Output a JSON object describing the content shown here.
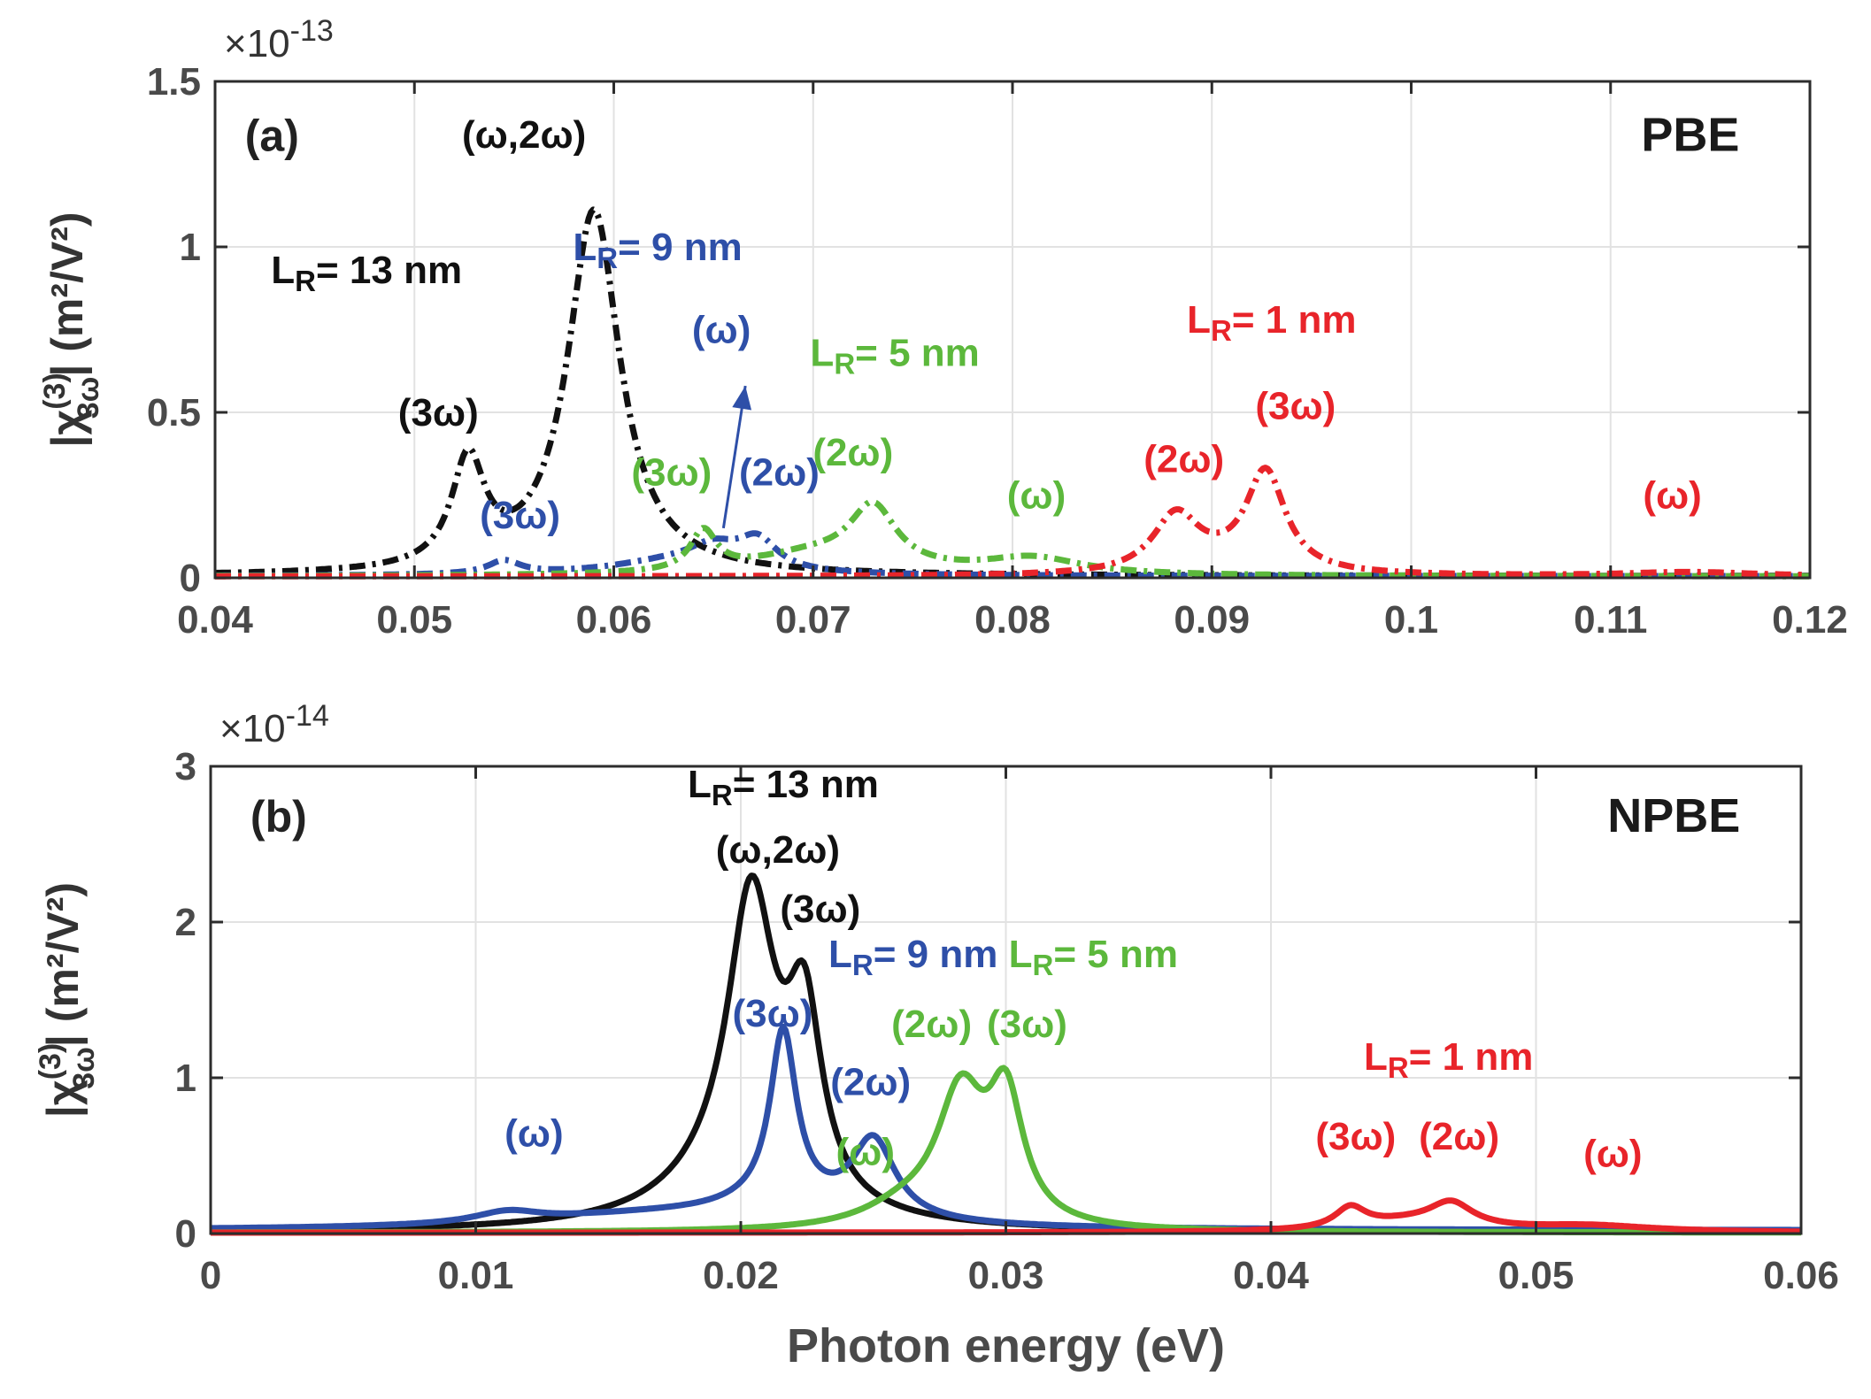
{
  "chart_data": [
    {
      "panel": "a",
      "type": "line",
      "method_label": "PBE",
      "panel_label": "(a)",
      "multiplier": "×10",
      "multiplier_exp": "-13",
      "xlabel": "",
      "ylabel_prefix": "|χ",
      "ylabel_sup": "(3)",
      "ylabel_sub": "3ω",
      "ylabel_suffix": "| (m²/V²)",
      "xlim": [
        0.04,
        0.12
      ],
      "ylim": [
        0,
        1.5
      ],
      "xticks": [
        0.04,
        0.05,
        0.06,
        0.07,
        0.08,
        0.09,
        0.1,
        0.11,
        0.12
      ],
      "xtick_labels": [
        "0.04",
        "0.05",
        "0.06",
        "0.07",
        "0.08",
        "0.09",
        "0.1",
        "0.11",
        "0.12"
      ],
      "yticks": [
        0,
        0.5,
        1,
        1.5
      ],
      "ytick_labels": [
        "0",
        "0.5",
        "1",
        "1.5"
      ],
      "line_style": "dashdot",
      "series": [
        {
          "name": "L_R = 13 nm",
          "color": "#111111",
          "baseline": 0.005,
          "peaks": [
            {
              "x": 0.0527,
              "amp": 0.32,
              "w": 0.001
            },
            {
              "x": 0.059,
              "amp": 1.1,
              "w": 0.0016
            }
          ]
        },
        {
          "name": "L_R = 9 nm",
          "color": "#2e4fa8",
          "baseline": 0.005,
          "peaks": [
            {
              "x": 0.0545,
              "amp": 0.04,
              "w": 0.001
            },
            {
              "x": 0.063,
              "amp": 0.04,
              "w": 0.004
            },
            {
              "x": 0.065,
              "amp": 0.06,
              "w": 0.0015
            },
            {
              "x": 0.0672,
              "amp": 0.09,
              "w": 0.0012
            }
          ]
        },
        {
          "name": "L_R = 5 nm",
          "color": "#5cb83c",
          "baseline": 0.004,
          "peaks": [
            {
              "x": 0.0645,
              "amp": 0.12,
              "w": 0.0008
            },
            {
              "x": 0.07,
              "amp": 0.06,
              "w": 0.004
            },
            {
              "x": 0.073,
              "amp": 0.18,
              "w": 0.0014
            },
            {
              "x": 0.081,
              "amp": 0.05,
              "w": 0.003
            }
          ]
        },
        {
          "name": "L_R = 1 nm",
          "color": "#e8242a",
          "baseline": 0.004,
          "peaks": [
            {
              "x": 0.0882,
              "amp": 0.17,
              "w": 0.0014
            },
            {
              "x": 0.0927,
              "amp": 0.3,
              "w": 0.0012
            },
            {
              "x": 0.0905,
              "amp": 0.02,
              "w": 0.003
            },
            {
              "x": 0.114,
              "amp": 0.012,
              "w": 0.004
            }
          ]
        }
      ],
      "annotations": [
        {
          "text": "(a)",
          "x": 0.0415,
          "y": 1.29,
          "color": "#222222",
          "cls": "plabel"
        },
        {
          "text": "PBE",
          "x": 0.114,
          "y": 1.29,
          "color": "#1a1a1a",
          "cls": "meth"
        },
        {
          "text": "(ω,2ω)",
          "x": 0.0555,
          "y": 1.3,
          "color": "#111111",
          "cls": "ann"
        },
        {
          "text": "L_R= 13 nm",
          "x": 0.0476,
          "y": 0.89,
          "color": "#111111",
          "cls": "ann"
        },
        {
          "text": "L_R= 9 nm",
          "x": 0.0622,
          "y": 0.96,
          "color": "#2e4fa8",
          "cls": "ann"
        },
        {
          "text": "(ω)",
          "x": 0.0654,
          "y": 0.71,
          "color": "#2e4fa8",
          "cls": "ann"
        },
        {
          "text": "L_R= 5 nm",
          "x": 0.0741,
          "y": 0.64,
          "color": "#5cb83c",
          "cls": "ann"
        },
        {
          "text": "L_R= 1 nm",
          "x": 0.093,
          "y": 0.74,
          "color": "#e8242a",
          "cls": "ann"
        },
        {
          "text": "(3ω)",
          "x": 0.0512,
          "y": 0.46,
          "color": "#111111",
          "cls": "ann"
        },
        {
          "text": "(3ω)",
          "x": 0.0942,
          "y": 0.48,
          "color": "#e8242a",
          "cls": "ann"
        },
        {
          "text": "(2ω)",
          "x": 0.072,
          "y": 0.34,
          "color": "#5cb83c",
          "cls": "ann"
        },
        {
          "text": "(2ω)",
          "x": 0.0886,
          "y": 0.32,
          "color": "#e8242a",
          "cls": "ann"
        },
        {
          "text": "(3ω)",
          "x": 0.0629,
          "y": 0.28,
          "color": "#5cb83c",
          "cls": "ann"
        },
        {
          "text": "(2ω)",
          "x": 0.0683,
          "y": 0.28,
          "color": "#2e4fa8",
          "cls": "ann"
        },
        {
          "text": "(ω)",
          "x": 0.0812,
          "y": 0.21,
          "color": "#5cb83c",
          "cls": "ann"
        },
        {
          "text": "(ω)",
          "x": 0.1131,
          "y": 0.21,
          "color": "#e8242a",
          "cls": "ann"
        },
        {
          "text": "(3ω)",
          "x": 0.0553,
          "y": 0.15,
          "color": "#2e4fa8",
          "cls": "ann"
        }
      ],
      "arrows": [
        {
          "x1": 0.0655,
          "y1": 0.15,
          "x2": 0.0666,
          "y2": 0.58,
          "color": "#2e4fa8"
        }
      ]
    },
    {
      "panel": "b",
      "type": "line",
      "method_label": "NPBE",
      "panel_label": "(b)",
      "multiplier": "×10",
      "multiplier_exp": "-14",
      "xlabel": "Photon energy (eV)",
      "ylabel_prefix": "|χ",
      "ylabel_sup": "(3)",
      "ylabel_sub": "3ω",
      "ylabel_suffix": "| (m²/V²)",
      "xlim": [
        0,
        0.06
      ],
      "ylim": [
        0,
        3
      ],
      "xticks": [
        0,
        0.01,
        0.02,
        0.03,
        0.04,
        0.05,
        0.06
      ],
      "xtick_labels": [
        "0",
        "0.01",
        "0.02",
        "0.03",
        "0.04",
        "0.05",
        "0.06"
      ],
      "yticks": [
        0,
        1,
        2,
        3
      ],
      "ytick_labels": [
        "0",
        "1",
        "2",
        "3"
      ],
      "line_style": "solid",
      "series": [
        {
          "name": "L_R = 13 nm",
          "color": "#111111",
          "baseline": 0.01,
          "peaks": [
            {
              "x": 0.0204,
              "amp": 1.9,
              "w": 0.0011
            },
            {
              "x": 0.0224,
              "amp": 1.15,
              "w": 0.0008
            },
            {
              "x": 0.0195,
              "amp": 0.25,
              "w": 0.003
            }
          ]
        },
        {
          "name": "L_R = 9 nm",
          "color": "#2e4fa8",
          "baseline": 0.02,
          "peaks": [
            {
              "x": 0.0112,
              "amp": 0.07,
              "w": 0.0015
            },
            {
              "x": 0.0165,
              "amp": 0.08,
              "w": 0.006
            },
            {
              "x": 0.0216,
              "amp": 1.1,
              "w": 0.0006
            },
            {
              "x": 0.025,
              "amp": 0.5,
              "w": 0.001
            },
            {
              "x": 0.0215,
              "amp": 0.12,
              "w": 0.003
            }
          ]
        },
        {
          "name": "L_R = 5 nm",
          "color": "#5cb83c",
          "baseline": 0.005,
          "peaks": [
            {
              "x": 0.0283,
              "amp": 0.82,
              "w": 0.0011
            },
            {
              "x": 0.03,
              "amp": 0.78,
              "w": 0.0008
            },
            {
              "x": 0.0262,
              "amp": 0.12,
              "w": 0.002
            }
          ]
        },
        {
          "name": "L_R = 1 nm",
          "color": "#e8242a",
          "baseline": 0.005,
          "peaks": [
            {
              "x": 0.043,
              "amp": 0.13,
              "w": 0.0007
            },
            {
              "x": 0.0468,
              "amp": 0.15,
              "w": 0.001
            },
            {
              "x": 0.0452,
              "amp": 0.06,
              "w": 0.0025
            },
            {
              "x": 0.052,
              "amp": 0.04,
              "w": 0.003
            }
          ]
        }
      ],
      "annotations": [
        {
          "text": "(b)",
          "x": 0.0015,
          "y": 2.58,
          "color": "#222222",
          "cls": "plabel"
        },
        {
          "text": "NPBE",
          "x": 0.0552,
          "y": 2.58,
          "color": "#1a1a1a",
          "cls": "meth"
        },
        {
          "text": "L_R= 13 nm",
          "x": 0.0216,
          "y": 2.8,
          "color": "#111111",
          "cls": "ann"
        },
        {
          "text": "(ω,2ω)",
          "x": 0.0214,
          "y": 2.38,
          "color": "#111111",
          "cls": "ann"
        },
        {
          "text": "(3ω)",
          "x": 0.023,
          "y": 2.0,
          "color": "#111111",
          "cls": "ann"
        },
        {
          "text": "L_R= 9 nm",
          "x": 0.0265,
          "y": 1.71,
          "color": "#2e4fa8",
          "cls": "ann"
        },
        {
          "text": "L_R= 5 nm",
          "x": 0.0333,
          "y": 1.71,
          "color": "#5cb83c",
          "cls": "ann"
        },
        {
          "text": "(3ω)",
          "x": 0.0212,
          "y": 1.33,
          "color": "#2e4fa8",
          "cls": "ann"
        },
        {
          "text": "(2ω)",
          "x": 0.0272,
          "y": 1.26,
          "color": "#5cb83c",
          "cls": "ann"
        },
        {
          "text": "(3ω)",
          "x": 0.0308,
          "y": 1.26,
          "color": "#5cb83c",
          "cls": "ann"
        },
        {
          "text": "L_R= 1 nm",
          "x": 0.0467,
          "y": 1.05,
          "color": "#e8242a",
          "cls": "ann"
        },
        {
          "text": "(2ω)",
          "x": 0.0249,
          "y": 0.89,
          "color": "#2e4fa8",
          "cls": "ann"
        },
        {
          "text": "(ω)",
          "x": 0.0122,
          "y": 0.56,
          "color": "#2e4fa8",
          "cls": "ann"
        },
        {
          "text": "(ω)",
          "x": 0.0247,
          "y": 0.44,
          "color": "#5cb83c",
          "cls": "ann"
        },
        {
          "text": "(3ω)",
          "x": 0.0432,
          "y": 0.54,
          "color": "#e8242a",
          "cls": "ann"
        },
        {
          "text": "(2ω)",
          "x": 0.0471,
          "y": 0.54,
          "color": "#e8242a",
          "cls": "ann"
        },
        {
          "text": "(ω)",
          "x": 0.0529,
          "y": 0.43,
          "color": "#e8242a",
          "cls": "ann"
        }
      ],
      "arrows": []
    }
  ]
}
